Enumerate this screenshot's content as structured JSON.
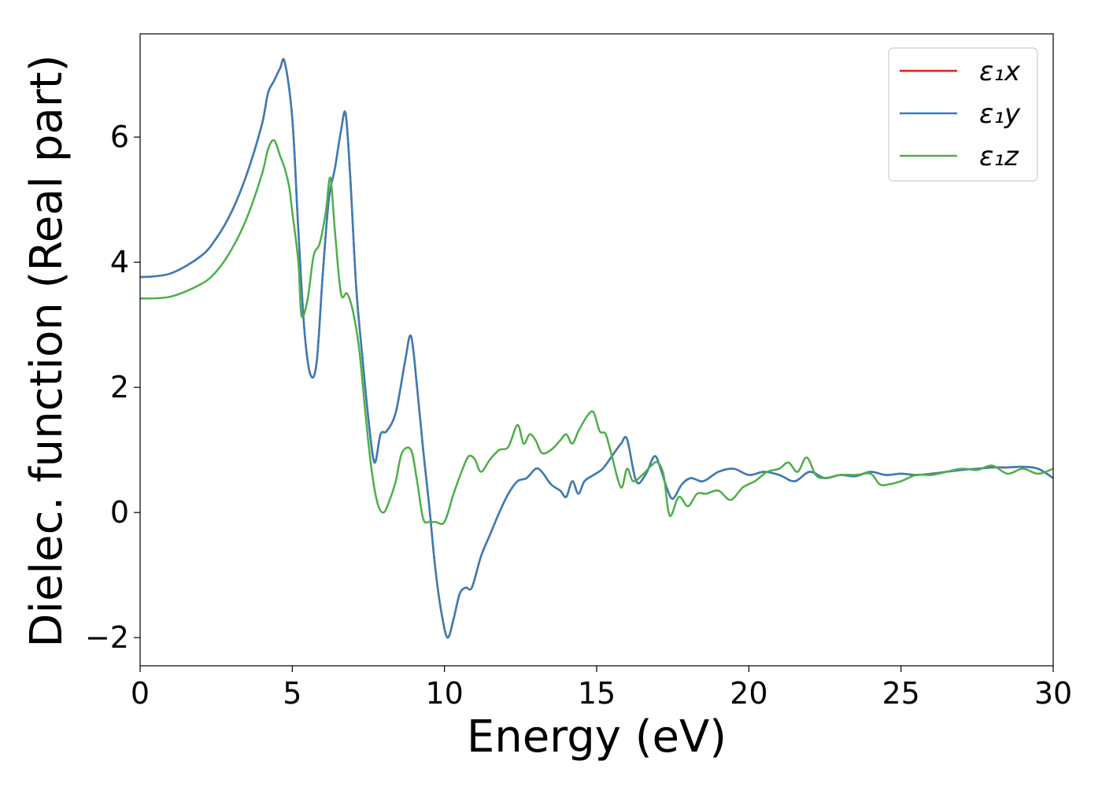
{
  "chart_data": {
    "type": "line",
    "title": "",
    "xlabel": "Energy (eV)",
    "ylabel": "Dielec. function (Real part)",
    "xlim": [
      0,
      30
    ],
    "ylim": [
      -2.45,
      7.65
    ],
    "xticks": [
      0,
      5,
      10,
      15,
      20,
      25,
      30
    ],
    "xtick_labels": [
      "0",
      "5",
      "10",
      "15",
      "20",
      "25",
      "30"
    ],
    "yticks": [
      -2,
      0,
      2,
      4,
      6
    ],
    "ytick_labels": [
      "−2",
      "0",
      "2",
      "4",
      "6"
    ],
    "grid": false,
    "legend": "top-right",
    "series": [
      {
        "name": "ε₁x",
        "color": "#e41a1c",
        "x": [
          0,
          1,
          2,
          2.5,
          3,
          3.5,
          4,
          4.2,
          4.4,
          4.6,
          4.75,
          5.0,
          5.2,
          5.4,
          5.6,
          5.8,
          6.0,
          6.2,
          6.4,
          6.6,
          6.75,
          6.9,
          7.1,
          7.3,
          7.5,
          7.7,
          7.9,
          8.1,
          8.4,
          8.7,
          8.9,
          9.1,
          9.3,
          9.5,
          9.7,
          9.9,
          10.1,
          10.3,
          10.5,
          10.7,
          10.9,
          11.2,
          11.5,
          11.8,
          12.1,
          12.4,
          12.7,
          13.0,
          13.2,
          13.5,
          13.8,
          14.0,
          14.2,
          14.4,
          14.6,
          14.9,
          15.2,
          15.5,
          15.8,
          16.0,
          16.3,
          16.6,
          16.9,
          17.1,
          17.3,
          17.5,
          17.8,
          18.1,
          18.5,
          19.0,
          19.5,
          20.0,
          20.5,
          21.0,
          21.5,
          22.0,
          22.5,
          23.0,
          23.5,
          24.0,
          24.5,
          25.0,
          25.5,
          26.0,
          26.5,
          27.0,
          27.5,
          28.0,
          28.5,
          29.0,
          29.5,
          30.0
        ],
        "y": [
          3.76,
          3.82,
          4.1,
          4.38,
          4.8,
          5.4,
          6.2,
          6.7,
          6.9,
          7.1,
          7.2,
          6.3,
          4.5,
          2.9,
          2.2,
          2.4,
          3.8,
          5.0,
          5.5,
          6.1,
          6.38,
          5.4,
          3.6,
          2.5,
          1.5,
          0.8,
          1.25,
          1.3,
          1.6,
          2.4,
          2.82,
          2.0,
          1.0,
          0.1,
          -0.9,
          -1.6,
          -2.0,
          -1.7,
          -1.3,
          -1.2,
          -1.2,
          -0.7,
          -0.35,
          0.0,
          0.3,
          0.5,
          0.55,
          0.7,
          0.65,
          0.45,
          0.35,
          0.25,
          0.5,
          0.3,
          0.5,
          0.6,
          0.7,
          0.9,
          1.1,
          1.17,
          0.5,
          0.6,
          0.9,
          0.7,
          0.4,
          0.22,
          0.45,
          0.55,
          0.5,
          0.65,
          0.7,
          0.6,
          0.65,
          0.6,
          0.5,
          0.65,
          0.55,
          0.6,
          0.58,
          0.65,
          0.6,
          0.62,
          0.6,
          0.62,
          0.65,
          0.68,
          0.7,
          0.72,
          0.72,
          0.73,
          0.7,
          0.55
        ]
      },
      {
        "name": "ε₁y",
        "color": "#377eb8",
        "x": [
          0,
          1,
          2,
          2.5,
          3,
          3.5,
          4,
          4.2,
          4.4,
          4.6,
          4.75,
          5.0,
          5.2,
          5.4,
          5.6,
          5.8,
          6.0,
          6.2,
          6.4,
          6.6,
          6.75,
          6.9,
          7.1,
          7.3,
          7.5,
          7.7,
          7.9,
          8.1,
          8.4,
          8.7,
          8.9,
          9.1,
          9.3,
          9.5,
          9.7,
          9.9,
          10.1,
          10.3,
          10.5,
          10.7,
          10.9,
          11.2,
          11.5,
          11.8,
          12.1,
          12.4,
          12.7,
          13.0,
          13.2,
          13.5,
          13.8,
          14.0,
          14.2,
          14.4,
          14.6,
          14.9,
          15.2,
          15.5,
          15.8,
          16.0,
          16.3,
          16.6,
          16.9,
          17.1,
          17.3,
          17.5,
          17.8,
          18.1,
          18.5,
          19.0,
          19.5,
          20.0,
          20.5,
          21.0,
          21.5,
          22.0,
          22.5,
          23.0,
          23.5,
          24.0,
          24.5,
          25.0,
          25.5,
          26.0,
          26.5,
          27.0,
          27.5,
          28.0,
          28.5,
          29.0,
          29.5,
          30.0
        ],
        "y": [
          3.76,
          3.82,
          4.1,
          4.38,
          4.8,
          5.4,
          6.2,
          6.7,
          6.9,
          7.1,
          7.2,
          6.3,
          4.5,
          2.9,
          2.2,
          2.4,
          3.8,
          5.0,
          5.5,
          6.1,
          6.38,
          5.4,
          3.6,
          2.5,
          1.5,
          0.8,
          1.25,
          1.3,
          1.6,
          2.4,
          2.82,
          2.0,
          1.0,
          0.1,
          -0.9,
          -1.6,
          -2.0,
          -1.7,
          -1.3,
          -1.2,
          -1.2,
          -0.7,
          -0.35,
          0.0,
          0.3,
          0.5,
          0.55,
          0.7,
          0.65,
          0.45,
          0.35,
          0.25,
          0.5,
          0.3,
          0.5,
          0.6,
          0.7,
          0.9,
          1.1,
          1.17,
          0.5,
          0.6,
          0.9,
          0.7,
          0.4,
          0.22,
          0.45,
          0.55,
          0.5,
          0.65,
          0.7,
          0.6,
          0.65,
          0.6,
          0.5,
          0.65,
          0.55,
          0.6,
          0.58,
          0.65,
          0.6,
          0.62,
          0.6,
          0.62,
          0.65,
          0.68,
          0.7,
          0.72,
          0.72,
          0.73,
          0.7,
          0.55
        ]
      },
      {
        "name": "ε₁z",
        "color": "#4daf4a",
        "x": [
          0,
          1,
          2,
          2.5,
          3,
          3.5,
          4,
          4.2,
          4.4,
          4.6,
          4.75,
          4.9,
          5.0,
          5.2,
          5.3,
          5.5,
          5.7,
          5.9,
          6.1,
          6.25,
          6.4,
          6.6,
          6.8,
          7.0,
          7.2,
          7.4,
          7.6,
          7.8,
          8.0,
          8.2,
          8.4,
          8.6,
          8.9,
          9.1,
          9.3,
          9.5,
          9.7,
          10.0,
          10.3,
          10.6,
          10.8,
          11.0,
          11.2,
          11.5,
          11.8,
          12.1,
          12.4,
          12.6,
          12.8,
          13.0,
          13.2,
          13.5,
          13.8,
          14.0,
          14.2,
          14.4,
          14.7,
          14.9,
          15.1,
          15.3,
          15.5,
          15.8,
          16.0,
          16.2,
          16.5,
          16.8,
          17.0,
          17.2,
          17.4,
          17.7,
          18.0,
          18.3,
          18.6,
          19.0,
          19.4,
          19.8,
          20.2,
          20.6,
          21.0,
          21.3,
          21.6,
          21.9,
          22.2,
          22.5,
          23.0,
          23.5,
          24.0,
          24.3,
          24.6,
          25.0,
          25.5,
          26.0,
          26.5,
          27.0,
          27.5,
          28.0,
          28.5,
          29.0,
          29.5,
          30.0
        ],
        "y": [
          3.42,
          3.45,
          3.65,
          3.85,
          4.2,
          4.7,
          5.4,
          5.8,
          5.95,
          5.7,
          5.5,
          5.2,
          4.8,
          4.0,
          3.15,
          3.4,
          4.1,
          4.3,
          4.8,
          5.35,
          4.5,
          3.5,
          3.5,
          3.2,
          2.6,
          1.6,
          0.7,
          0.15,
          0.0,
          0.2,
          0.5,
          0.95,
          1.0,
          0.5,
          -0.1,
          -0.15,
          -0.15,
          -0.15,
          0.3,
          0.7,
          0.9,
          0.85,
          0.65,
          0.85,
          1.0,
          1.05,
          1.4,
          1.1,
          1.25,
          1.15,
          0.95,
          1.0,
          1.15,
          1.25,
          1.1,
          1.3,
          1.55,
          1.6,
          1.3,
          1.25,
          0.9,
          0.4,
          0.7,
          0.5,
          0.6,
          0.75,
          0.8,
          0.6,
          -0.05,
          0.25,
          0.1,
          0.3,
          0.3,
          0.35,
          0.2,
          0.4,
          0.5,
          0.65,
          0.7,
          0.8,
          0.65,
          0.88,
          0.6,
          0.55,
          0.6,
          0.6,
          0.62,
          0.45,
          0.45,
          0.5,
          0.6,
          0.6,
          0.65,
          0.7,
          0.68,
          0.75,
          0.62,
          0.7,
          0.62,
          0.7
        ]
      }
    ]
  }
}
